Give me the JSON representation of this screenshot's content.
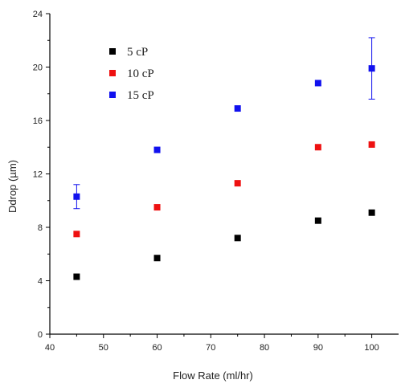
{
  "chart_data": {
    "type": "scatter",
    "xlabel": "Flow Rate (ml/hr)",
    "ylabel": "Ddrop (µm)",
    "xlim": [
      40,
      105
    ],
    "ylim": [
      0,
      24
    ],
    "x_ticks": [
      40,
      50,
      60,
      70,
      80,
      90,
      100
    ],
    "y_ticks": [
      0,
      4,
      8,
      12,
      16,
      20,
      24
    ],
    "legend_position": "top-left",
    "series": [
      {
        "name": "5  cP",
        "color": "#000000",
        "points": [
          {
            "x": 45,
            "y": 4.3
          },
          {
            "x": 60,
            "y": 5.7
          },
          {
            "x": 75,
            "y": 7.2
          },
          {
            "x": 90,
            "y": 8.5
          },
          {
            "x": 100,
            "y": 9.1
          }
        ]
      },
      {
        "name": "10 cP",
        "color": "#ee1111",
        "points": [
          {
            "x": 45,
            "y": 7.5
          },
          {
            "x": 60,
            "y": 9.5
          },
          {
            "x": 75,
            "y": 11.3
          },
          {
            "x": 90,
            "y": 14.0
          },
          {
            "x": 100,
            "y": 14.2
          }
        ]
      },
      {
        "name": "15 cP",
        "color": "#1111ee",
        "points": [
          {
            "x": 45,
            "y": 10.3,
            "err": 0.9
          },
          {
            "x": 60,
            "y": 13.8
          },
          {
            "x": 75,
            "y": 16.9
          },
          {
            "x": 90,
            "y": 18.8
          },
          {
            "x": 100,
            "y": 19.9,
            "err": 2.3
          }
        ]
      }
    ]
  }
}
